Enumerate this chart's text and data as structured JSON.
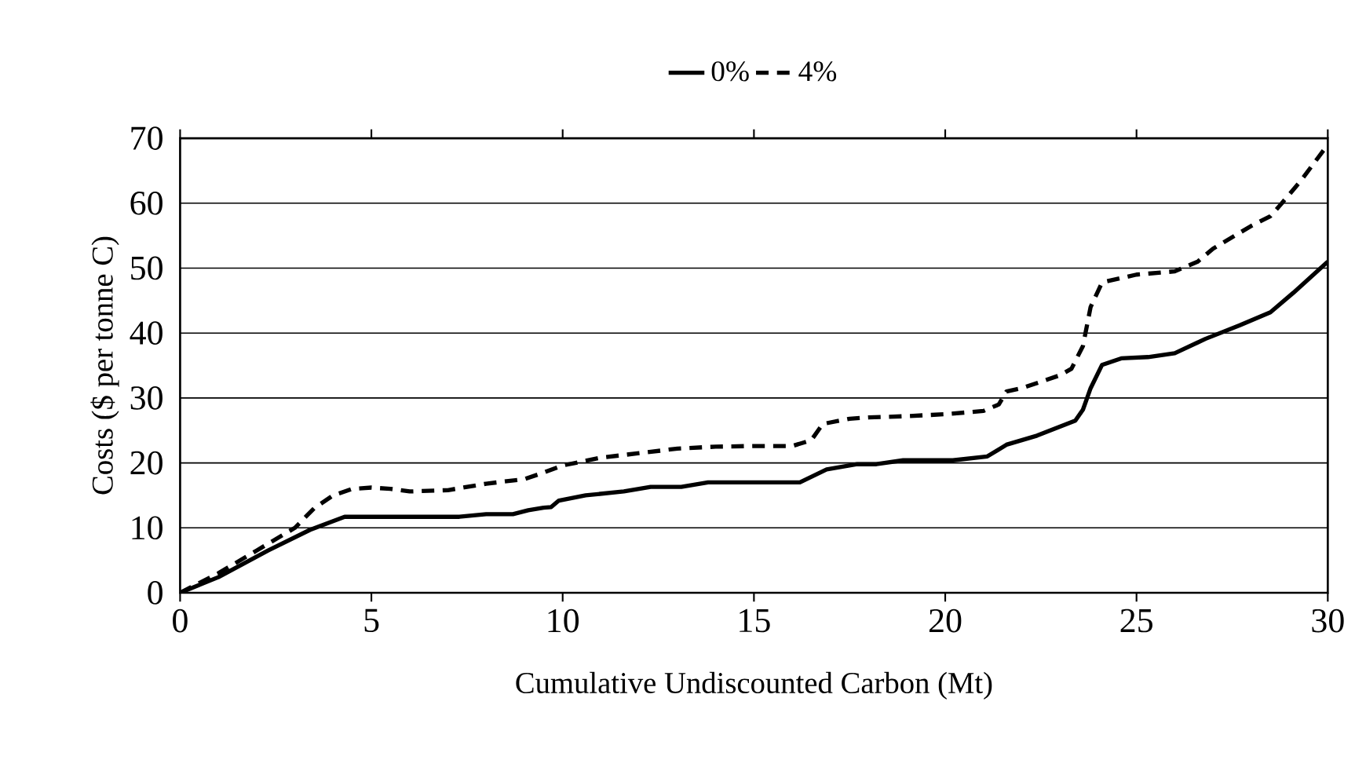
{
  "chart_data": {
    "type": "line",
    "xlabel": "Cumulative Undiscounted Carbon (Mt)",
    "ylabel": "Costs ($ per tonne C)",
    "xlim": [
      0,
      30
    ],
    "xticks": [
      0,
      5,
      10,
      15,
      20,
      25,
      30
    ],
    "ylim": [
      0,
      70
    ],
    "yticks": [
      0,
      10,
      20,
      30,
      40,
      50,
      60,
      70
    ],
    "grid": "y",
    "legend": "top",
    "marker": "none",
    "series": [
      {
        "name": "0%",
        "color": "#000000",
        "line_style": "solid",
        "x": [
          0,
          1,
          2.3,
          3.4,
          4.3,
          5,
          7.3,
          8,
          8.7,
          9.1,
          9.5,
          9.7,
          9.9,
          10.6,
          11.6,
          12.3,
          13.1,
          13.8,
          16.2,
          16.9,
          17.7,
          18.2,
          18.9,
          20.2,
          21.1,
          21.6,
          22.4,
          23.4,
          23.6,
          23.8,
          24.1,
          24.6,
          25.3,
          26,
          26.8,
          27.7,
          28.5,
          29.1,
          30
        ],
        "values": [
          0,
          2.4,
          6.5,
          9.7,
          11.7,
          11.7,
          11.7,
          12.1,
          12.1,
          12.7,
          13.1,
          13.2,
          14.2,
          15,
          15.6,
          16.3,
          16.3,
          17,
          17,
          19,
          19.8,
          19.8,
          20.4,
          20.4,
          21,
          22.8,
          24.2,
          26.5,
          28.2,
          31.5,
          35.1,
          36.1,
          36.3,
          36.9,
          39.1,
          41.2,
          43.2,
          46.2,
          51
        ]
      },
      {
        "name": "4%",
        "color": "#000000",
        "line_style": "dashed",
        "x": [
          0,
          1,
          2,
          3,
          3.5,
          4,
          4.5,
          5,
          5.5,
          6,
          7,
          8,
          9,
          9.5,
          10,
          11,
          12,
          13,
          14,
          15,
          16,
          16.5,
          16.8,
          17.5,
          18,
          19,
          20,
          21,
          21.4,
          21.6,
          22,
          23,
          23.3,
          23.6,
          23.8,
          24.1,
          25,
          26,
          26.6,
          27,
          28,
          28.5,
          28.8,
          29.3,
          30
        ],
        "values": [
          0,
          3,
          6.5,
          10,
          13,
          15,
          16,
          16.2,
          16,
          15.6,
          15.8,
          16.8,
          17.5,
          18.5,
          19.6,
          20.8,
          21.5,
          22.2,
          22.5,
          22.6,
          22.6,
          23.5,
          26,
          26.8,
          27,
          27.2,
          27.5,
          28,
          29,
          31,
          31.5,
          33.5,
          34.5,
          38,
          44,
          47.8,
          49,
          49.5,
          51,
          53,
          56.5,
          58,
          60,
          63.5,
          69
        ]
      }
    ]
  }
}
